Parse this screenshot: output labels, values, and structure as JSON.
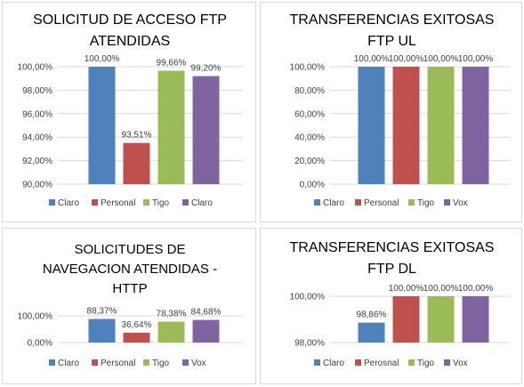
{
  "chart_data": [
    {
      "type": "bar",
      "title_lines": [
        "SOLICITUD DE ACCESO FTP",
        "ATENDIDAS"
      ],
      "categories": [
        "Claro",
        "Personal",
        "Tigo",
        "Claro"
      ],
      "values": [
        100.0,
        93.51,
        99.66,
        99.2
      ],
      "value_labels": [
        "100,00%",
        "93,51%",
        "99,66%",
        "99,20%"
      ],
      "ylim": [
        90,
        100
      ],
      "yticks": [
        90,
        92,
        94,
        96,
        98,
        100
      ],
      "ytick_labels": [
        "90,00%",
        "92,00%",
        "94,00%",
        "96,00%",
        "98,00%",
        "100,00%"
      ],
      "colors": [
        "#4f81bd",
        "#c0504d",
        "#9bbb59",
        "#8064a2"
      ],
      "grid": true,
      "legend_position": "bottom"
    },
    {
      "type": "bar",
      "title_lines": [
        "TRANSFERENCIAS EXITOSAS",
        "FTP UL"
      ],
      "categories": [
        "Claro",
        "Personal",
        "Tigo",
        "Vox"
      ],
      "values": [
        100.0,
        100.0,
        100.0,
        100.0
      ],
      "value_labels": [
        "100,00%",
        "100,00%",
        "100,00%",
        "100,00%"
      ],
      "ylim": [
        0,
        100
      ],
      "yticks": [
        0,
        20,
        40,
        60,
        80,
        100
      ],
      "ytick_labels": [
        "0,00%",
        "20,00%",
        "40,00%",
        "60,00%",
        "80,00%",
        "100,00%"
      ],
      "colors": [
        "#4f81bd",
        "#c0504d",
        "#9bbb59",
        "#8064a2"
      ],
      "grid": true,
      "legend_position": "bottom"
    },
    {
      "type": "bar",
      "title_lines": [
        "SOLICITUDES DE",
        "NAVEGACION ATENDIDAS -",
        "HTTP"
      ],
      "categories": [
        "Claro",
        "Personal",
        "Tigo",
        "Vox"
      ],
      "values": [
        88.37,
        36.64,
        78.38,
        84.68
      ],
      "value_labels": [
        "88,37%",
        "36,64%",
        "78,38%",
        "84,68%"
      ],
      "ylim": [
        0,
        100
      ],
      "yticks": [
        0,
        100
      ],
      "ytick_labels": [
        "0,00%",
        "100,00%"
      ],
      "colors": [
        "#4f81bd",
        "#c0504d",
        "#9bbb59",
        "#8064a2"
      ],
      "grid": true,
      "legend_position": "bottom"
    },
    {
      "type": "bar",
      "title_lines": [
        "TRANSFERENCIAS EXITOSAS",
        "FTP DL"
      ],
      "categories": [
        "Claro",
        "Perosnal",
        "Tigo",
        "Vox"
      ],
      "values": [
        98.86,
        100.0,
        100.0,
        100.0
      ],
      "value_labels": [
        "98,86%",
        "100,00%",
        "100,00%",
        "100,00%"
      ],
      "ylim": [
        98,
        100
      ],
      "yticks": [
        98,
        100
      ],
      "ytick_labels": [
        "98,00%",
        "100,00%"
      ],
      "colors": [
        "#4f81bd",
        "#c0504d",
        "#9bbb59",
        "#8064a2"
      ],
      "grid": true,
      "legend_position": "bottom"
    }
  ]
}
